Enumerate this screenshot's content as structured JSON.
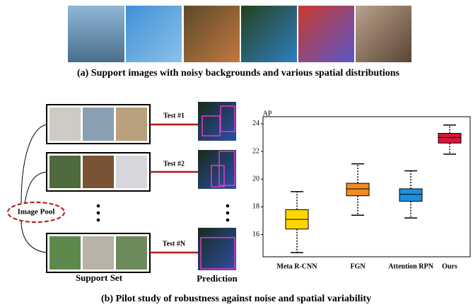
{
  "top_caption": "(a) Support images with noisy backgrounds and various spatial distributions",
  "bottom_caption": "(b) Pilot study of robustness against noise and spatial variability",
  "diagram": {
    "pool_label": "Image Pool",
    "tests": [
      "Test #1",
      "Test #2",
      "Test #N"
    ],
    "support_label": "Support Set",
    "prediction_label": "Prediction"
  },
  "chart_data": {
    "type": "box",
    "y_label": "AP",
    "categories": [
      "Meta R-CNN",
      "FGN",
      "Attention RPN",
      "Ours"
    ],
    "colors": [
      "#ffd500",
      "#f28c1e",
      "#1e8fe0",
      "#d8173c"
    ],
    "stats": [
      {
        "min": 14.7,
        "q1": 16.4,
        "median": 17.1,
        "q3": 17.8,
        "max": 19.1
      },
      {
        "min": 17.4,
        "q1": 18.8,
        "median": 19.3,
        "q3": 19.7,
        "max": 21.1
      },
      {
        "min": 17.2,
        "q1": 18.4,
        "median": 18.9,
        "q3": 19.3,
        "max": 20.6
      },
      {
        "min": 21.8,
        "q1": 22.6,
        "median": 23.0,
        "q3": 23.3,
        "max": 23.9
      }
    ],
    "ylim": [
      14.4,
      24.5
    ],
    "yticks": [
      16,
      18,
      20,
      22,
      24
    ]
  }
}
